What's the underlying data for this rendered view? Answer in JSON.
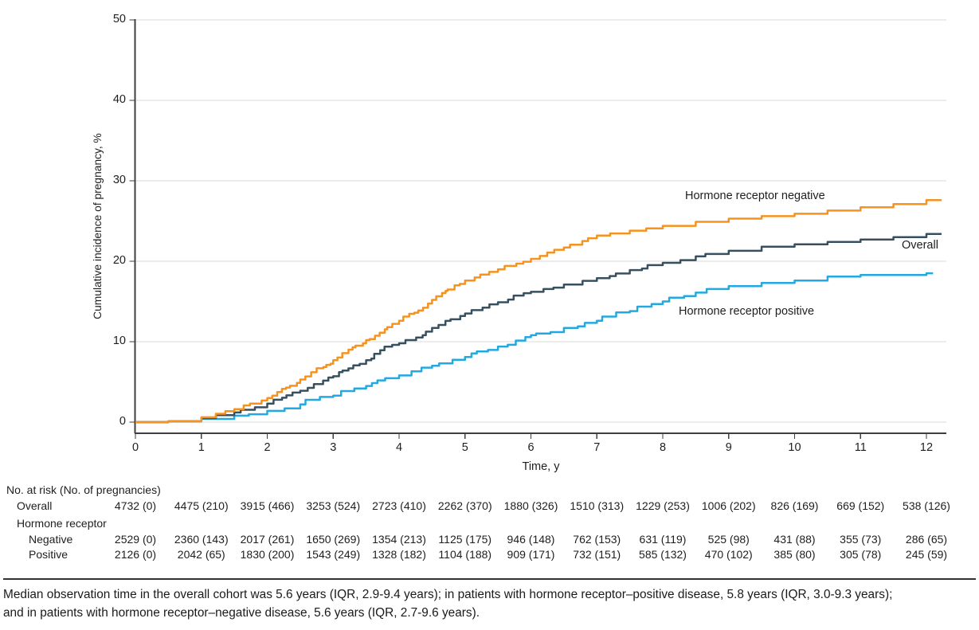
{
  "chart_data": {
    "type": "line",
    "step": true,
    "title": "",
    "xlabel": "Time, y",
    "ylabel": "Cumulative incidence of pregnancy, %",
    "xlim": [
      0,
      12
    ],
    "ylim": [
      0,
      50
    ],
    "x_ticks": [
      0,
      1,
      2,
      3,
      4,
      5,
      6,
      7,
      8,
      9,
      10,
      11,
      12
    ],
    "y_ticks": [
      0,
      10,
      20,
      30,
      40,
      50
    ],
    "grid": "horizontal-only",
    "legend": "inline-labels",
    "x": [
      0,
      0.5,
      1,
      1.5,
      2,
      2.5,
      3,
      3.5,
      4,
      4.5,
      5,
      5.5,
      6,
      6.5,
      7,
      7.5,
      8,
      8.5,
      9,
      9.5,
      10,
      10.5,
      11,
      11.5,
      12
    ],
    "series": [
      {
        "name": "Hormone receptor negative",
        "color": "#F6921E",
        "x_end": 12.23,
        "values": [
          0,
          0.1,
          0.6,
          1.6,
          3.0,
          5.3,
          7.7,
          10.2,
          12.6,
          15.2,
          17.6,
          19.0,
          20.3,
          21.7,
          23.2,
          23.8,
          24.4,
          24.9,
          25.3,
          25.6,
          25.9,
          26.3,
          26.7,
          27.1,
          27.6
        ]
      },
      {
        "name": "Overall",
        "color": "#37505F",
        "x_end": 12.23,
        "values": [
          0,
          0.1,
          0.5,
          1.2,
          2.3,
          3.9,
          5.7,
          7.7,
          9.8,
          11.7,
          13.5,
          14.9,
          16.2,
          17.1,
          17.9,
          18.9,
          19.8,
          20.6,
          21.3,
          21.8,
          22.1,
          22.4,
          22.7,
          23.0,
          23.4
        ]
      },
      {
        "name": "Hormone receptor positive",
        "color": "#23A9E1",
        "x_end": 12.1,
        "values": [
          0,
          0.1,
          0.4,
          0.8,
          1.4,
          2.2,
          3.3,
          4.5,
          5.8,
          7.0,
          8.1,
          9.4,
          10.8,
          11.7,
          12.6,
          13.8,
          15.0,
          16.1,
          16.9,
          17.3,
          17.6,
          18.1,
          18.3,
          18.3,
          18.5
        ]
      }
    ]
  },
  "risk_table": {
    "header": "No. at risk (No. of pregnancies)",
    "group_label": "Hormone receptor",
    "rows": [
      {
        "label": "Overall",
        "values": [
          "4732 (0)",
          "4475 (210)",
          "3915 (466)",
          "3253 (524)",
          "2723 (410)",
          "2262 (370)",
          "1880 (326)",
          "1510 (313)",
          "1229 (253)",
          "1006 (202)",
          "826 (169)",
          "669 (152)",
          "538 (126)"
        ]
      },
      {
        "label": "Negative",
        "values": [
          "2529 (0)",
          "2360 (143)",
          "2017 (261)",
          "1650 (269)",
          "1354 (213)",
          "1125 (175)",
          "946 (148)",
          "762 (153)",
          "631 (119)",
          "525 (98)",
          "431 (88)",
          "355 (73)",
          "286 (65)"
        ]
      },
      {
        "label": "Positive",
        "values": [
          "2126 (0)",
          "2042 (65)",
          "1830 (200)",
          "1543 (249)",
          "1328 (182)",
          "1104 (188)",
          "909 (171)",
          "732 (151)",
          "585 (132)",
          "470 (102)",
          "385 (80)",
          "305 (78)",
          "245 (59)"
        ]
      }
    ]
  },
  "caption_lines": [
    "Median observation time in the overall cohort was 5.6 years (IQR, 2.9-9.4 years); in patients with hormone receptor–positive disease, 5.8 years (IQR, 3.0-9.3 years);",
    "and in patients with hormone receptor–negative disease, 5.6 years (IQR, 2.7-9.6 years)."
  ],
  "colors": {
    "axis": "#3f3f3f",
    "gridline": "#dbdbdb",
    "text": "#1e1e1e"
  }
}
